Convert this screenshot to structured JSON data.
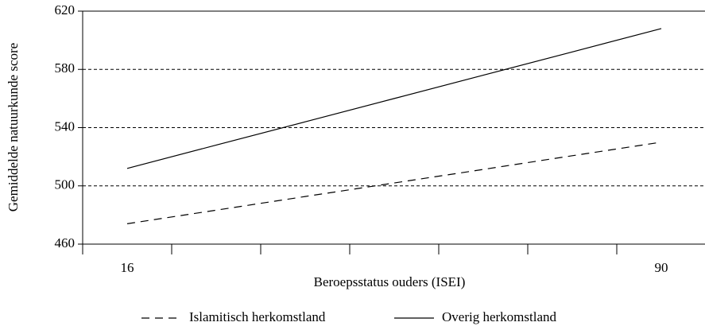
{
  "chart_data": {
    "type": "line",
    "x_label": "Beroepsstatus ouders (ISEI)",
    "y_label": "Gemiddelde natuurkunde score",
    "categories": [
      "16",
      null,
      null,
      null,
      null,
      null,
      "90"
    ],
    "series": [
      {
        "name": "Islamitisch herkomstland",
        "color": "#000000",
        "dash": "dashed",
        "values": [
          474,
          483.3,
          492.7,
          502,
          511.3,
          520.7,
          530
        ]
      },
      {
        "name": "Overig herkomstland",
        "color": "#000000",
        "dash": "solid",
        "values": [
          512,
          528,
          544,
          560,
          576,
          592,
          608
        ]
      }
    ],
    "ylim": [
      460,
      620
    ],
    "yticks": [
      460,
      500,
      540,
      580,
      620
    ],
    "grid": true
  }
}
